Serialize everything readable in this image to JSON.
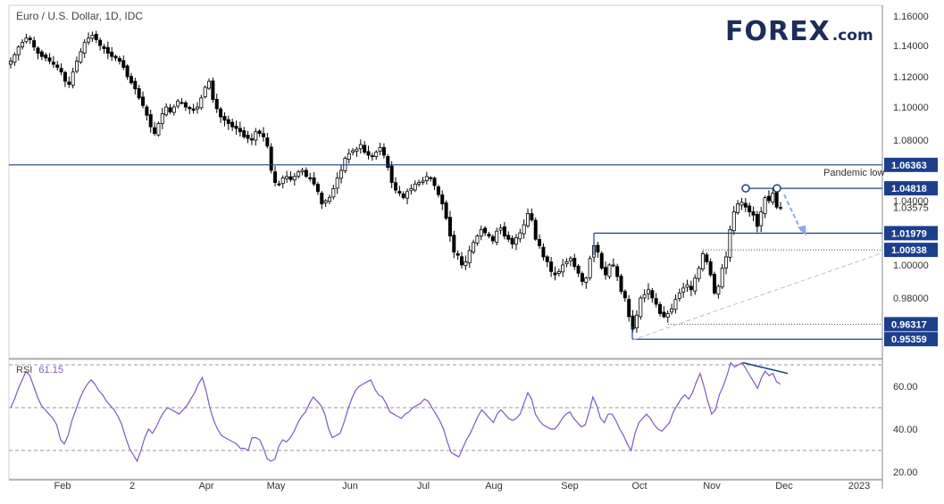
{
  "header": {
    "title": "Euro / U.S. Dollar, 1D, IDC"
  },
  "logo": {
    "brand": "FOREX",
    "suffix": ".com",
    "color": "#1c2d5a",
    "accent": "#7dc243"
  },
  "colors": {
    "level_line": "#1c3f8c",
    "tag_bg": "#1c3f8c",
    "candle": "#000000",
    "rsi_line": "#7e57c2",
    "projection": "#8fa8e8",
    "trendline": "#b9bfcc",
    "grid": "#999999"
  },
  "chart_data": [
    {
      "type": "candlestick",
      "title": "Euro / U.S. Dollar, 1D, IDC",
      "x_tick_labels": [
        "Feb",
        "2",
        "Apr",
        "May",
        "Jun",
        "Jul",
        "Aug",
        "Sep",
        "Oct",
        "Nov",
        "Dec",
        "2023"
      ],
      "y_tick_labels": [
        "1.16000",
        "1.14000",
        "1.12000",
        "1.10000",
        "1.08000",
        "1.04000",
        "1.00000",
        "0.98000"
      ],
      "ylim": [
        0.945,
        1.165
      ],
      "series": [
        {
          "name": "EUR/USD daily close (approx.)",
          "values": [
            1.13,
            1.134,
            1.139,
            1.142,
            1.145,
            1.144,
            1.139,
            1.135,
            1.133,
            1.132,
            1.13,
            1.128,
            1.126,
            1.123,
            1.117,
            1.115,
            1.123,
            1.13,
            1.136,
            1.142,
            1.145,
            1.147,
            1.144,
            1.14,
            1.138,
            1.135,
            1.133,
            1.132,
            1.13,
            1.126,
            1.12,
            1.116,
            1.112,
            1.106,
            1.101,
            1.095,
            1.088,
            1.084,
            1.09,
            1.096,
            1.1,
            1.097,
            1.1,
            1.104,
            1.103,
            1.1,
            1.099,
            1.098,
            1.1,
            1.106,
            1.113,
            1.117,
            1.105,
            1.099,
            1.094,
            1.092,
            1.09,
            1.088,
            1.087,
            1.085,
            1.082,
            1.081,
            1.08,
            1.085,
            1.084,
            1.082,
            1.076,
            1.06,
            1.052,
            1.051,
            1.055,
            1.056,
            1.054,
            1.056,
            1.059,
            1.06,
            1.056,
            1.055,
            1.051,
            1.046,
            1.038,
            1.04,
            1.042,
            1.048,
            1.055,
            1.06,
            1.068,
            1.071,
            1.073,
            1.074,
            1.077,
            1.072,
            1.07,
            1.069,
            1.072,
            1.075,
            1.07,
            1.062,
            1.052,
            1.047,
            1.045,
            1.042,
            1.046,
            1.048,
            1.051,
            1.052,
            1.053,
            1.056,
            1.055,
            1.05,
            1.044,
            1.038,
            1.029,
            1.018,
            1.008,
            1.006,
            1.0,
            1.002,
            1.009,
            1.014,
            1.018,
            1.022,
            1.02,
            1.018,
            1.015,
            1.021,
            1.023,
            1.018,
            1.016,
            1.013,
            1.017,
            1.02,
            1.025,
            1.032,
            1.028,
            1.016,
            1.012,
            1.005,
            1.002,
            0.996,
            0.994,
            0.996,
            1.0,
            1.002,
            1.004,
            0.999,
            0.995,
            0.99,
            0.992,
            1.004,
            1.012,
            1.008,
            0.998,
            0.994,
            1.0,
            1.0,
            0.993,
            0.984,
            0.98,
            0.968,
            0.96,
            0.969,
            0.98,
            0.982,
            0.985,
            0.98,
            0.976,
            0.97,
            0.968,
            0.97,
            0.973,
            0.979,
            0.983,
            0.986,
            0.988,
            0.985,
            0.992,
            0.998,
            1.007,
            1.002,
            0.994,
            0.983,
            0.987,
            0.998,
            1.005,
            1.022,
            1.033,
            1.038,
            1.039,
            1.036,
            1.033,
            1.031,
            1.024,
            1.033,
            1.042,
            1.04,
            1.045,
            1.036,
            1.0358
          ]
        }
      ],
      "levels": [
        {
          "value": 1.06363,
          "label": "1.06363",
          "annotation": "Pandemic low"
        },
        {
          "value": 1.04818,
          "label": "1.04818"
        },
        {
          "value": 1.03575,
          "label": "1.03575"
        },
        {
          "value": 1.01979,
          "label": "1.01979"
        },
        {
          "value": 1.00938,
          "label": "1.00938"
        },
        {
          "value": 0.96317,
          "label": "0.96317"
        },
        {
          "value": 0.95359,
          "label": "0.95359"
        }
      ],
      "projection": {
        "from": 1.044,
        "to": 1.018
      }
    },
    {
      "type": "line",
      "title": "RSI",
      "value_label": "61.15",
      "y_tick_labels": [
        "60.00",
        "40.00",
        "20.00"
      ],
      "ylim": [
        18,
        74
      ],
      "reference_levels": [
        70,
        50,
        30
      ],
      "series": [
        {
          "name": "RSI",
          "values": [
            50,
            54,
            59,
            63,
            67,
            65,
            60,
            55,
            51,
            49,
            47,
            45,
            42,
            35,
            33,
            37,
            44,
            49,
            54,
            58,
            61,
            63,
            61,
            58,
            56,
            53,
            51,
            49,
            46,
            42,
            36,
            31,
            28,
            25,
            30,
            36,
            40,
            38,
            41,
            45,
            48,
            50,
            49,
            48,
            47,
            49,
            51,
            54,
            57,
            61,
            64,
            58,
            50,
            44,
            40,
            37,
            36,
            35,
            34,
            33,
            31,
            31,
            30,
            36,
            36,
            35,
            31,
            26,
            25,
            26,
            32,
            35,
            34,
            36,
            39,
            43,
            46,
            48,
            52,
            55,
            53,
            51,
            47,
            40,
            36,
            37,
            38,
            43,
            49,
            54,
            58,
            60,
            61,
            62,
            63,
            59,
            56,
            55,
            52,
            48,
            47,
            46,
            45,
            47,
            48,
            50,
            51,
            52,
            54,
            53,
            50,
            47,
            44,
            40,
            34,
            29,
            28,
            27,
            31,
            35,
            38,
            42,
            46,
            49,
            47,
            45,
            43,
            47,
            49,
            47,
            45,
            44,
            45,
            47,
            52,
            57,
            54,
            47,
            44,
            42,
            41,
            40,
            40,
            42,
            45,
            47,
            48,
            45,
            43,
            41,
            42,
            48,
            55,
            51,
            45,
            43,
            47,
            47,
            44,
            40,
            37,
            33,
            30,
            38,
            43,
            45,
            47,
            45,
            42,
            40,
            39,
            41,
            43,
            48,
            51,
            54,
            56,
            54,
            57,
            62,
            66,
            60,
            53,
            47,
            49,
            56,
            60,
            65,
            71,
            69,
            70,
            71,
            68,
            65,
            62,
            59,
            64,
            67,
            65,
            66,
            62,
            61
          ]
        }
      ],
      "divergence_line": {
        "from": 71,
        "to": 66
      }
    }
  ]
}
